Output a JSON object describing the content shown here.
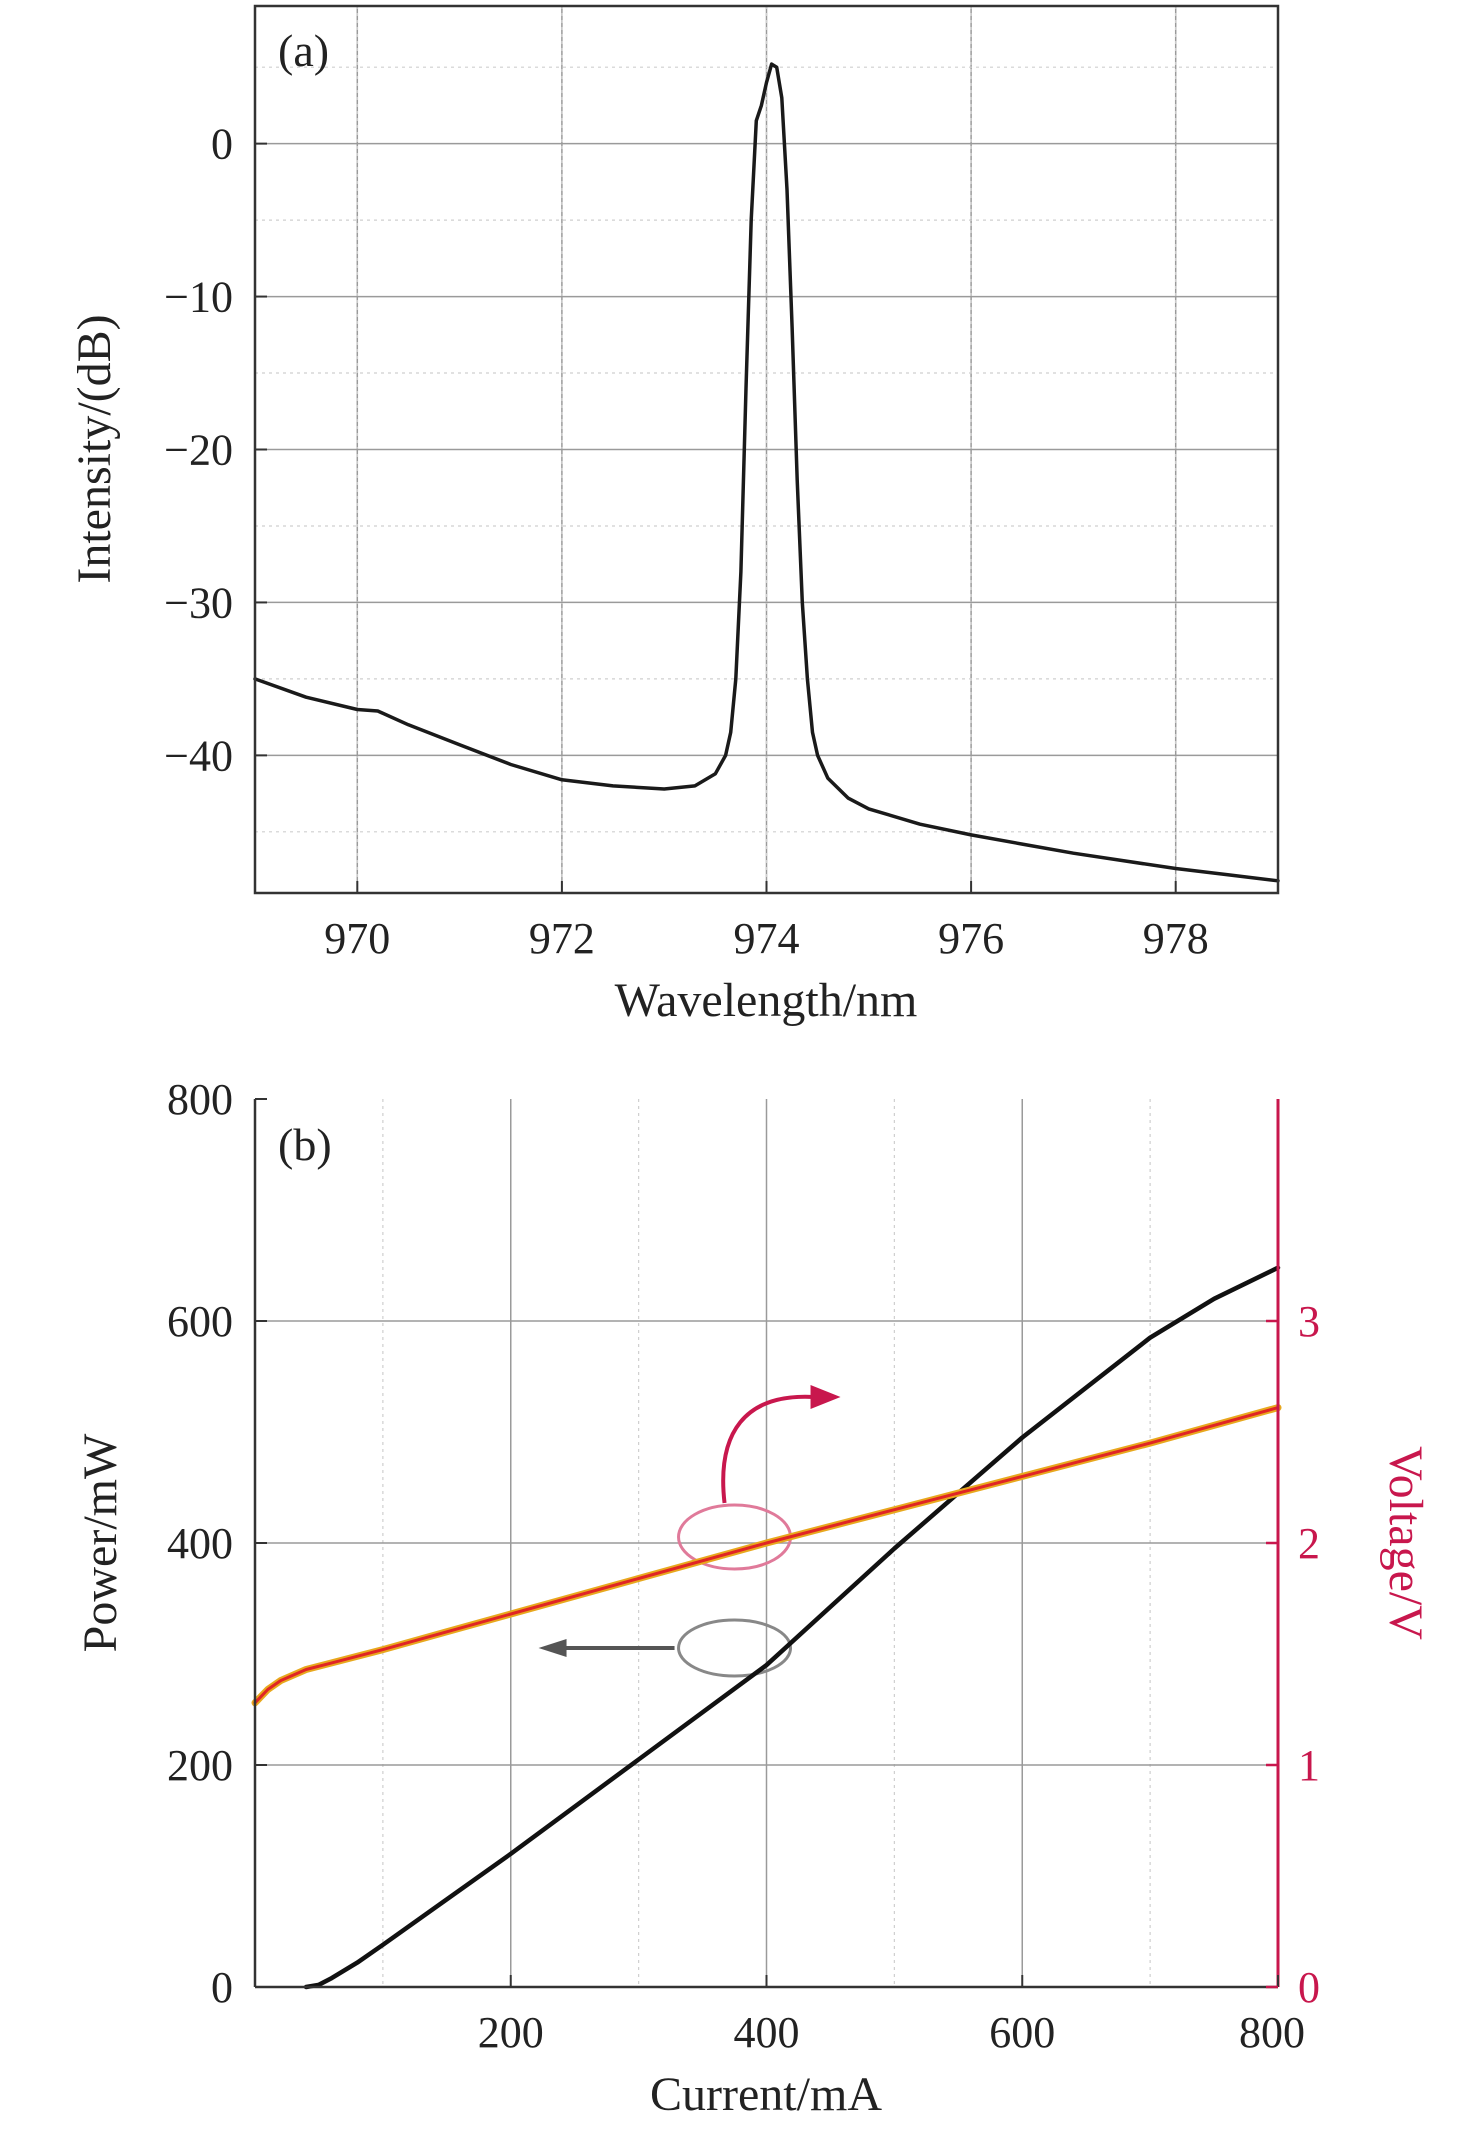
{
  "chart_data": [
    {
      "type": "line",
      "panel_label": "(a)",
      "xlabel": "Wavelength/nm",
      "ylabel": "Intensity/(dB)",
      "xlim": [
        969,
        979
      ],
      "ylim": [
        -49,
        9
      ],
      "xticks": [
        970,
        972,
        974,
        976,
        978
      ],
      "yticks": [
        0,
        -10,
        -20,
        -30,
        -40
      ],
      "ytick_labels": [
        "0",
        "−10",
        "−20",
        "−30",
        "−40"
      ],
      "grid": true,
      "series": [
        {
          "color": "#1a1a1a",
          "x": [
            969.0,
            969.5,
            970.0,
            970.2,
            970.5,
            971.0,
            971.5,
            972.0,
            972.5,
            973.0,
            973.3,
            973.5,
            973.6,
            973.65,
            973.7,
            973.75,
            973.8,
            973.85,
            973.9,
            973.95,
            974.0,
            974.05,
            974.1,
            974.15,
            974.2,
            974.25,
            974.3,
            974.35,
            974.4,
            974.45,
            974.5,
            974.6,
            974.8,
            975.0,
            975.5,
            976.0,
            976.5,
            977.0,
            977.5,
            978.0,
            978.5,
            979.0
          ],
          "y": [
            -35.0,
            -36.2,
            -37.0,
            -37.1,
            -38.0,
            -39.3,
            -40.6,
            -41.6,
            -42.0,
            -42.2,
            -42.0,
            -41.2,
            -40.0,
            -38.5,
            -35.0,
            -28.0,
            -16.0,
            -5.0,
            1.5,
            2.5,
            4.0,
            5.2,
            5.0,
            3.0,
            -3.0,
            -12.0,
            -22.0,
            -30.0,
            -35.0,
            -38.5,
            -40.0,
            -41.5,
            -42.8,
            -43.5,
            -44.5,
            -45.2,
            -45.8,
            -46.4,
            -46.9,
            -47.4,
            -47.8,
            -48.2
          ]
        }
      ]
    },
    {
      "type": "line",
      "panel_label": "(b)",
      "xlabel": "Current/mA",
      "ylabel": "Power/mW",
      "y2label": "Voltage/V",
      "xlim": [
        0,
        800
      ],
      "ylim": [
        0,
        800
      ],
      "y2lim": [
        0,
        4
      ],
      "xticks": [
        200,
        400,
        600,
        800
      ],
      "yticks": [
        0,
        200,
        400,
        600,
        800
      ],
      "y2ticks": [
        0,
        1,
        2,
        3
      ],
      "y2_color": "#c8174d",
      "grid": true,
      "series": [
        {
          "axis": "left",
          "color": "#111111",
          "x": [
            40,
            50,
            60,
            80,
            100,
            200,
            300,
            400,
            500,
            600,
            700,
            750,
            800
          ],
          "y": [
            0,
            2,
            8,
            22,
            38,
            120,
            205,
            290,
            395,
            495,
            585,
            620,
            648
          ]
        },
        {
          "axis": "right",
          "color": "#e02525",
          "outline_color": "#e8a81e",
          "x": [
            0,
            10,
            20,
            40,
            60,
            100,
            150,
            200,
            300,
            400,
            500,
            600,
            700,
            800
          ],
          "y": [
            1.28,
            1.34,
            1.38,
            1.43,
            1.46,
            1.52,
            1.6,
            1.68,
            1.84,
            2.0,
            2.15,
            2.3,
            2.45,
            2.61
          ]
        }
      ],
      "annotations": [
        {
          "type": "ellipse",
          "target": "right",
          "x": 375,
          "y": 400,
          "color": "#e07a9a"
        },
        {
          "type": "ellipse",
          "target": "left",
          "x": 375,
          "y": 300,
          "color": "#888888"
        },
        {
          "type": "arrow",
          "direction": "right",
          "color": "#c8174d"
        },
        {
          "type": "arrow",
          "direction": "left",
          "color": "#555555"
        }
      ]
    }
  ]
}
